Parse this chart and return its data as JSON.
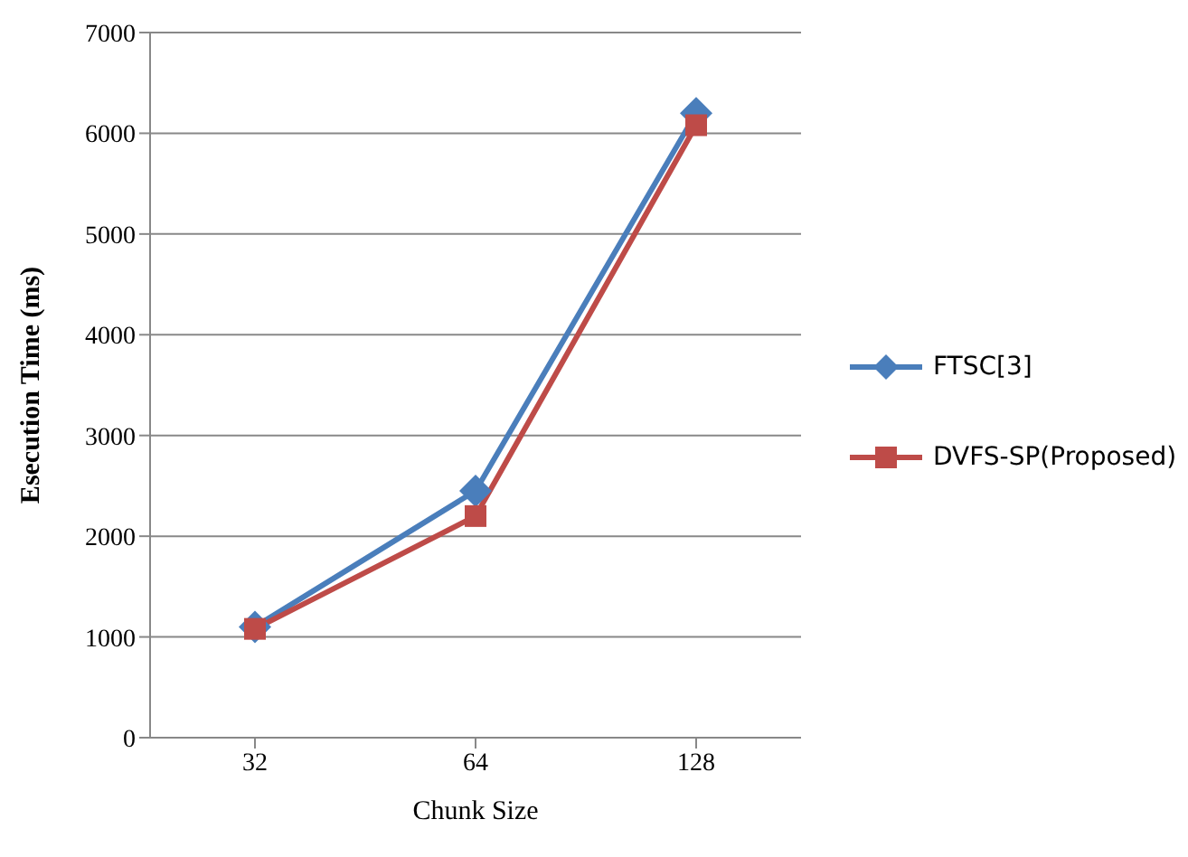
{
  "chart_data": {
    "type": "line",
    "xlabel": "Chunk Size",
    "ylabel": "Esecution Time (ms)",
    "categories": [
      "32",
      "64",
      "128"
    ],
    "series": [
      {
        "name": "FTSC[3]",
        "color": "#4a7ebb",
        "marker": "diamond",
        "values": [
          1100,
          2450,
          6200
        ]
      },
      {
        "name": "DVFS-SP(Proposed)",
        "color": "#be4b48",
        "marker": "square",
        "values": [
          1080,
          2200,
          6080
        ]
      }
    ],
    "ylim": [
      0,
      7000
    ],
    "yticks": [
      0,
      1000,
      2000,
      3000,
      4000,
      5000,
      6000,
      7000
    ],
    "grid": "y",
    "legend": "right"
  }
}
